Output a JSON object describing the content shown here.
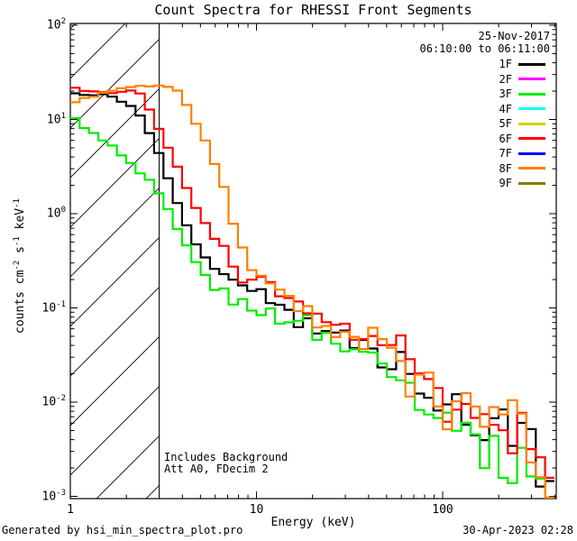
{
  "title": "Count Spectra for RHESSI Front Segments",
  "header": {
    "date_label": "25-Nov-2017",
    "time_range": "06:10:00 to 06:11:00"
  },
  "legend": {
    "items": [
      {
        "label": "1F",
        "color": "#000000"
      },
      {
        "label": "2F",
        "color": "#ff00ff"
      },
      {
        "label": "3F",
        "color": "#00ee00"
      },
      {
        "label": "4F",
        "color": "#00ffff"
      },
      {
        "label": "5F",
        "color": "#d2d200"
      },
      {
        "label": "6F",
        "color": "#ff0000"
      },
      {
        "label": "7F",
        "color": "#0000ff"
      },
      {
        "label": "8F",
        "color": "#ff8000"
      },
      {
        "label": "9F",
        "color": "#7f7f00"
      }
    ]
  },
  "annotations": {
    "line1": "Includes Background",
    "line2": "Att A0, FDecim 2"
  },
  "footer": {
    "left": "Generated by hsi_min_spectra_plot.pro",
    "right": "30-Apr-2023 02:28"
  },
  "chart_data": {
    "type": "line",
    "subtype": "histogram-step-spectra",
    "title": "Count Spectra for RHESSI Front Segments",
    "xlabel": "Energy (keV)",
    "ylabel": "counts cm^{-2} s^{-1} keV^{-1}",
    "x_scale": "log",
    "y_scale": "log",
    "x_range_keV": [
      1,
      408
    ],
    "y_range": [
      0.001,
      100
    ],
    "x_ticks": [
      1,
      10,
      100
    ],
    "x_tick_labels": [
      "1",
      "10",
      "100"
    ],
    "y_tick_values": [
      100,
      10,
      1,
      0.1,
      0.01,
      0.001
    ],
    "y_tick_labels": [
      "10^{2}",
      "10^{1}",
      "10^{0}",
      "10^{-1}",
      "10^{-2}",
      "10^{-3}"
    ],
    "grid": false,
    "legend_position": "upper-right-inside",
    "hatch_region_keV": {
      "from": 1,
      "to": 3
    },
    "bin_start_keV": 1.0,
    "bin_ratio_log10": 0.05,
    "bin_count": 52,
    "noise_sigma_log10": [
      [
        6.5,
        0.012
      ],
      [
        15,
        0.05
      ],
      [
        40,
        0.075
      ],
      [
        90,
        0.11
      ],
      [
        200,
        0.16
      ],
      [
        1000,
        0.2
      ]
    ],
    "series": [
      {
        "name": "1F",
        "color": "#000000",
        "seed": 101,
        "anchors": [
          [
            1.0,
            19
          ],
          [
            1.5,
            18
          ],
          [
            1.8,
            16
          ],
          [
            2.2,
            13
          ],
          [
            2.6,
            8.5
          ],
          [
            3.0,
            4.2
          ],
          [
            3.5,
            1.9
          ],
          [
            4.0,
            1.0
          ],
          [
            4.6,
            0.55
          ],
          [
            5.3,
            0.35
          ],
          [
            6.0,
            0.25
          ],
          [
            7.0,
            0.19
          ],
          [
            8.5,
            0.15
          ],
          [
            10,
            0.135
          ],
          [
            12,
            0.115
          ],
          [
            15,
            0.095
          ],
          [
            20,
            0.07
          ],
          [
            25,
            0.057
          ],
          [
            30,
            0.048
          ],
          [
            40,
            0.037
          ],
          [
            50,
            0.028
          ],
          [
            60,
            0.022
          ],
          [
            80,
            0.012
          ],
          [
            100,
            0.0085
          ],
          [
            130,
            0.0068
          ],
          [
            170,
            0.0058
          ],
          [
            220,
            0.005
          ],
          [
            300,
            0.0034
          ],
          [
            400,
            0.002
          ]
        ]
      },
      {
        "name": "3F",
        "color": "#00ee00",
        "seed": 202,
        "anchors": [
          [
            1.0,
            10.5
          ],
          [
            1.25,
            8.0
          ],
          [
            1.55,
            5.8
          ],
          [
            1.9,
            4.2
          ],
          [
            2.3,
            3.0
          ],
          [
            2.7,
            2.1
          ],
          [
            3.0,
            1.6
          ],
          [
            3.5,
            0.95
          ],
          [
            4.0,
            0.55
          ],
          [
            4.6,
            0.33
          ],
          [
            5.3,
            0.22
          ],
          [
            6.0,
            0.16
          ],
          [
            7.0,
            0.125
          ],
          [
            8.5,
            0.105
          ],
          [
            10,
            0.095
          ],
          [
            12,
            0.082
          ],
          [
            15,
            0.068
          ],
          [
            20,
            0.055
          ],
          [
            25,
            0.044
          ],
          [
            30,
            0.037
          ],
          [
            40,
            0.028
          ],
          [
            50,
            0.022
          ],
          [
            60,
            0.017
          ],
          [
            80,
            0.009
          ],
          [
            100,
            0.0062
          ],
          [
            130,
            0.0046
          ],
          [
            170,
            0.0036
          ],
          [
            220,
            0.0028
          ],
          [
            300,
            0.002
          ],
          [
            400,
            0.0013
          ]
        ]
      },
      {
        "name": "6F",
        "color": "#ff0000",
        "seed": 303,
        "anchors": [
          [
            1.0,
            22
          ],
          [
            1.4,
            20
          ],
          [
            1.8,
            20
          ],
          [
            2.2,
            21
          ],
          [
            2.6,
            15
          ],
          [
            3.0,
            8
          ],
          [
            3.5,
            4.2
          ],
          [
            4.0,
            2.3
          ],
          [
            4.5,
            1.5
          ],
          [
            5.0,
            0.9
          ],
          [
            5.7,
            0.6
          ],
          [
            6.5,
            0.45
          ],
          [
            7.5,
            0.3
          ],
          [
            8.5,
            0.22
          ],
          [
            10,
            0.18
          ],
          [
            12,
            0.16
          ],
          [
            15,
            0.125
          ],
          [
            20,
            0.095
          ],
          [
            25,
            0.075
          ],
          [
            30,
            0.063
          ],
          [
            40,
            0.048
          ],
          [
            50,
            0.037
          ],
          [
            60,
            0.029
          ],
          [
            80,
            0.015
          ],
          [
            100,
            0.0098
          ],
          [
            130,
            0.008
          ],
          [
            170,
            0.0068
          ],
          [
            220,
            0.0052
          ],
          [
            300,
            0.0032
          ],
          [
            400,
            0.0018
          ]
        ]
      },
      {
        "name": "8F",
        "color": "#ff8000",
        "seed": 404,
        "anchors": [
          [
            1.0,
            14
          ],
          [
            1.2,
            16.5
          ],
          [
            1.5,
            19.5
          ],
          [
            1.8,
            21
          ],
          [
            2.2,
            22.5
          ],
          [
            2.8,
            23
          ],
          [
            3.4,
            23
          ],
          [
            4.0,
            19
          ],
          [
            4.6,
            10
          ],
          [
            5.4,
            5.5
          ],
          [
            6.3,
            2.7
          ],
          [
            7.0,
            1.3
          ],
          [
            7.7,
            0.6
          ],
          [
            8.5,
            0.35
          ],
          [
            10,
            0.24
          ],
          [
            12,
            0.18
          ],
          [
            15,
            0.12
          ],
          [
            20,
            0.082
          ],
          [
            25,
            0.065
          ],
          [
            30,
            0.053
          ],
          [
            40,
            0.04
          ],
          [
            50,
            0.031
          ],
          [
            60,
            0.024
          ],
          [
            80,
            0.013
          ],
          [
            100,
            0.0088
          ],
          [
            130,
            0.007
          ],
          [
            170,
            0.0056
          ],
          [
            220,
            0.0042
          ],
          [
            300,
            0.0028
          ],
          [
            400,
            0.0016
          ]
        ]
      }
    ],
    "plotted_series": [
      "1F",
      "3F",
      "6F",
      "8F"
    ]
  }
}
